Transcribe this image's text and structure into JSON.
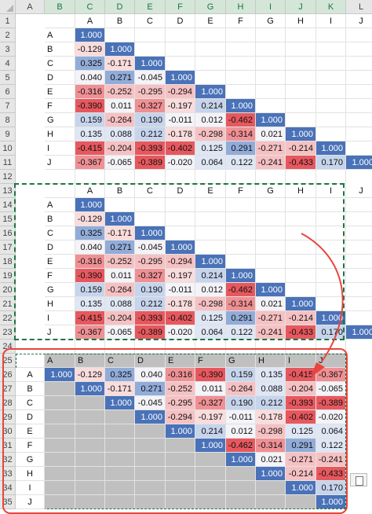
{
  "columns": [
    "A",
    "B",
    "C",
    "D",
    "E",
    "F",
    "G",
    "H",
    "I",
    "J",
    "K",
    "L"
  ],
  "rows": [
    "1",
    "2",
    "3",
    "4",
    "5",
    "6",
    "7",
    "8",
    "9",
    "10",
    "11",
    "12",
    "13",
    "14",
    "15",
    "16",
    "17",
    "18",
    "19",
    "20",
    "21",
    "22",
    "23",
    "24",
    "25",
    "26",
    "27",
    "28",
    "29",
    "30",
    "31",
    "32",
    "33",
    "34",
    "35"
  ],
  "labels": [
    "A",
    "B",
    "C",
    "D",
    "E",
    "F",
    "G",
    "H",
    "I",
    "J"
  ],
  "lower": [
    [
      "1.000"
    ],
    [
      "-0.129",
      "1.000"
    ],
    [
      "0.325",
      "-0.171",
      "1.000"
    ],
    [
      "0.040",
      "0.271",
      "-0.045",
      "1.000"
    ],
    [
      "-0.316",
      "-0.252",
      "-0.295",
      "-0.294",
      "1.000"
    ],
    [
      "-0.390",
      "0.011",
      "-0.327",
      "-0.197",
      "0.214",
      "1.000"
    ],
    [
      "0.159",
      "-0.264",
      "0.190",
      "-0.011",
      "0.012",
      "-0.462",
      "1.000"
    ],
    [
      "0.135",
      "0.088",
      "0.212",
      "-0.178",
      "-0.298",
      "-0.314",
      "0.021",
      "1.000"
    ],
    [
      "-0.415",
      "-0.204",
      "-0.393",
      "-0.402",
      "0.125",
      "0.291",
      "-0.271",
      "-0.214",
      "1.000"
    ],
    [
      "-0.367",
      "-0.065",
      "-0.389",
      "-0.020",
      "0.064",
      "0.122",
      "-0.241",
      "-0.433",
      "0.170",
      "1.000"
    ]
  ],
  "colors": {
    "strong_blue": "#4a72b8",
    "light_blue": "#c6d4ec",
    "pale": "#f3f3f8",
    "strong_red": "#e7585e",
    "light_red": "#f6c1c3",
    "gray": "#c0c0c0",
    "selection": "#217346",
    "annotation": "#e8453c"
  }
}
